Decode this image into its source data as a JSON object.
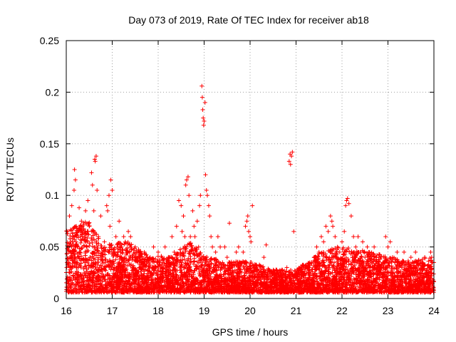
{
  "chart_data": {
    "type": "scatter",
    "title": "Day 073 of 2019, Rate Of TEC Index for receiver ab18",
    "xlabel": "GPS time / hours",
    "ylabel": "ROTI / TECUs",
    "xlim": [
      16,
      24
    ],
    "ylim": [
      0,
      0.25
    ],
    "x_ticks": [
      16,
      17,
      18,
      19,
      20,
      21,
      22,
      23,
      24
    ],
    "x_tick_labels": [
      "16",
      "17",
      "18",
      "19",
      "20",
      "21",
      "22",
      "23",
      "24"
    ],
    "y_ticks": [
      0,
      0.05,
      0.1,
      0.15,
      0.2,
      0.25
    ],
    "y_tick_labels": [
      "0",
      "0.05",
      "0.1",
      "0.15",
      "0.2",
      "0.25"
    ],
    "grid": true,
    "marker": "+",
    "color": "#ff0000",
    "series": [
      {
        "name": "ROTI",
        "points": [
          [
            16.03,
            0.065
          ],
          [
            16.05,
            0.035
          ],
          [
            16.07,
            0.08
          ],
          [
            16.08,
            0.025
          ],
          [
            16.1,
            0.055
          ],
          [
            16.12,
            0.09
          ],
          [
            16.13,
            0.04
          ],
          [
            16.15,
            0.06
          ],
          [
            16.17,
            0.105
          ],
          [
            16.18,
            0.125
          ],
          [
            16.2,
            0.115
          ],
          [
            16.22,
            0.07
          ],
          [
            16.23,
            0.03
          ],
          [
            16.25,
            0.05
          ],
          [
            16.28,
            0.088
          ],
          [
            16.3,
            0.045
          ],
          [
            16.33,
            0.075
          ],
          [
            16.35,
            0.06
          ],
          [
            16.38,
            0.02
          ],
          [
            16.4,
            0.065
          ],
          [
            16.42,
            0.085
          ],
          [
            16.45,
            0.05
          ],
          [
            16.47,
            0.095
          ],
          [
            16.5,
            0.07
          ],
          [
            16.52,
            0.04
          ],
          [
            16.55,
            0.122
          ],
          [
            16.57,
            0.11
          ],
          [
            16.6,
            0.085
          ],
          [
            16.62,
            0.135
          ],
          [
            16.63,
            0.133
          ],
          [
            16.65,
            0.138
          ],
          [
            16.67,
            0.105
          ],
          [
            16.7,
            0.06
          ],
          [
            16.72,
            0.03
          ],
          [
            16.75,
            0.08
          ],
          [
            16.78,
            0.045
          ],
          [
            16.8,
            0.02
          ],
          [
            16.83,
            0.055
          ],
          [
            16.85,
            0.035
          ],
          [
            16.88,
            0.09
          ],
          [
            16.9,
            0.085
          ],
          [
            16.93,
            0.1
          ],
          [
            16.95,
            0.07
          ],
          [
            16.97,
            0.115
          ],
          [
            17.0,
            0.105
          ],
          [
            17.02,
            0.045
          ],
          [
            17.05,
            0.03
          ],
          [
            17.08,
            0.06
          ],
          [
            17.1,
            0.02
          ],
          [
            17.12,
            0.05
          ],
          [
            17.15,
            0.075
          ],
          [
            17.2,
            0.04
          ],
          [
            17.25,
            0.06
          ],
          [
            17.3,
            0.035
          ],
          [
            17.35,
            0.065
          ],
          [
            17.38,
            0.045
          ],
          [
            17.4,
            0.06
          ],
          [
            17.45,
            0.03
          ],
          [
            17.5,
            0.05
          ],
          [
            17.55,
            0.025
          ],
          [
            17.6,
            0.04
          ],
          [
            17.65,
            0.035
          ],
          [
            17.7,
            0.045
          ],
          [
            17.75,
            0.02
          ],
          [
            17.8,
            0.038
          ],
          [
            17.85,
            0.025
          ],
          [
            17.9,
            0.05
          ],
          [
            17.95,
            0.03
          ],
          [
            18.0,
            0.045
          ],
          [
            18.05,
            0.02
          ],
          [
            18.1,
            0.035
          ],
          [
            18.15,
            0.05
          ],
          [
            18.2,
            0.028
          ],
          [
            18.25,
            0.04
          ],
          [
            18.3,
            0.06
          ],
          [
            18.35,
            0.045
          ],
          [
            18.4,
            0.07
          ],
          [
            18.45,
            0.095
          ],
          [
            18.5,
            0.09
          ],
          [
            18.52,
            0.065
          ],
          [
            18.55,
            0.08
          ],
          [
            18.58,
            0.06
          ],
          [
            18.6,
            0.11
          ],
          [
            18.62,
            0.115
          ],
          [
            18.65,
            0.118
          ],
          [
            18.67,
            0.1
          ],
          [
            18.7,
            0.06
          ],
          [
            18.72,
            0.05
          ],
          [
            18.75,
            0.085
          ],
          [
            18.78,
            0.07
          ],
          [
            18.8,
            0.06
          ],
          [
            18.83,
            0.045
          ],
          [
            18.85,
            0.075
          ],
          [
            18.88,
            0.05
          ],
          [
            18.9,
            0.09
          ],
          [
            18.92,
            0.1
          ],
          [
            18.95,
            0.206
          ],
          [
            18.96,
            0.195
          ],
          [
            18.97,
            0.183
          ],
          [
            18.98,
            0.175
          ],
          [
            18.99,
            0.168
          ],
          [
            19.0,
            0.172
          ],
          [
            19.02,
            0.19
          ],
          [
            19.03,
            0.12
          ],
          [
            19.05,
            0.105
          ],
          [
            19.07,
            0.1
          ],
          [
            19.1,
            0.09
          ],
          [
            19.12,
            0.08
          ],
          [
            19.15,
            0.06
          ],
          [
            19.18,
            0.05
          ],
          [
            19.2,
            0.03
          ],
          [
            19.25,
            0.045
          ],
          [
            19.3,
            0.06
          ],
          [
            19.35,
            0.05
          ],
          [
            19.4,
            0.035
          ],
          [
            19.45,
            0.05
          ],
          [
            19.5,
            0.04
          ],
          [
            19.55,
            0.073
          ],
          [
            19.6,
            0.03
          ],
          [
            19.7,
            0.045
          ],
          [
            19.75,
            0.05
          ],
          [
            19.8,
            0.035
          ],
          [
            19.85,
            0.045
          ],
          [
            19.9,
            0.07
          ],
          [
            19.93,
            0.075
          ],
          [
            19.95,
            0.08
          ],
          [
            19.97,
            0.065
          ],
          [
            20.0,
            0.06
          ],
          [
            20.02,
            0.055
          ],
          [
            20.05,
            0.09
          ],
          [
            20.1,
            0.02
          ],
          [
            20.2,
            0.025
          ],
          [
            20.3,
            0.04
          ],
          [
            20.35,
            0.052
          ],
          [
            20.4,
            0.02
          ],
          [
            20.5,
            0.015
          ],
          [
            20.6,
            0.025
          ],
          [
            20.7,
            0.02
          ],
          [
            20.8,
            0.03
          ],
          [
            20.85,
            0.133
          ],
          [
            20.87,
            0.14
          ],
          [
            20.88,
            0.13
          ],
          [
            20.9,
            0.138
          ],
          [
            20.92,
            0.142
          ],
          [
            20.95,
            0.065
          ],
          [
            21.0,
            0.02
          ],
          [
            21.1,
            0.025
          ],
          [
            21.2,
            0.03
          ],
          [
            21.3,
            0.035
          ],
          [
            21.4,
            0.04
          ],
          [
            21.45,
            0.05
          ],
          [
            21.5,
            0.045
          ],
          [
            21.55,
            0.06
          ],
          [
            21.6,
            0.055
          ],
          [
            21.65,
            0.07
          ],
          [
            21.7,
            0.065
          ],
          [
            21.75,
            0.08
          ],
          [
            21.78,
            0.075
          ],
          [
            21.8,
            0.07
          ],
          [
            21.85,
            0.06
          ],
          [
            21.9,
            0.05
          ],
          [
            21.95,
            0.045
          ],
          [
            22.0,
            0.055
          ],
          [
            22.05,
            0.065
          ],
          [
            22.08,
            0.09
          ],
          [
            22.1,
            0.095
          ],
          [
            22.12,
            0.097
          ],
          [
            22.15,
            0.092
          ],
          [
            22.2,
            0.08
          ],
          [
            22.25,
            0.06
          ],
          [
            22.3,
            0.05
          ],
          [
            22.35,
            0.06
          ],
          [
            22.4,
            0.045
          ],
          [
            22.45,
            0.055
          ],
          [
            22.5,
            0.04
          ],
          [
            22.55,
            0.05
          ],
          [
            22.6,
            0.045
          ],
          [
            22.65,
            0.035
          ],
          [
            22.7,
            0.05
          ],
          [
            22.75,
            0.03
          ],
          [
            22.8,
            0.04
          ],
          [
            22.85,
            0.025
          ],
          [
            22.9,
            0.035
          ],
          [
            22.95,
            0.06
          ],
          [
            23.0,
            0.05
          ],
          [
            23.05,
            0.055
          ],
          [
            23.1,
            0.04
          ],
          [
            23.15,
            0.035
          ],
          [
            23.2,
            0.045
          ],
          [
            23.3,
            0.03
          ],
          [
            23.35,
            0.045
          ],
          [
            23.4,
            0.025
          ],
          [
            23.45,
            0.035
          ],
          [
            23.5,
            0.04
          ],
          [
            23.55,
            0.03
          ],
          [
            23.6,
            0.045
          ],
          [
            23.65,
            0.025
          ],
          [
            23.7,
            0.02
          ],
          [
            23.75,
            0.035
          ],
          [
            23.8,
            0.04
          ],
          [
            23.85,
            0.025
          ],
          [
            23.9,
            0.03
          ],
          [
            23.93,
            0.045
          ],
          [
            23.95,
            0.04
          ],
          [
            23.97,
            0.035
          ]
        ]
      }
    ],
    "dense_band_points_per_hour": 900,
    "dense_band_baseline": 0.006
  }
}
